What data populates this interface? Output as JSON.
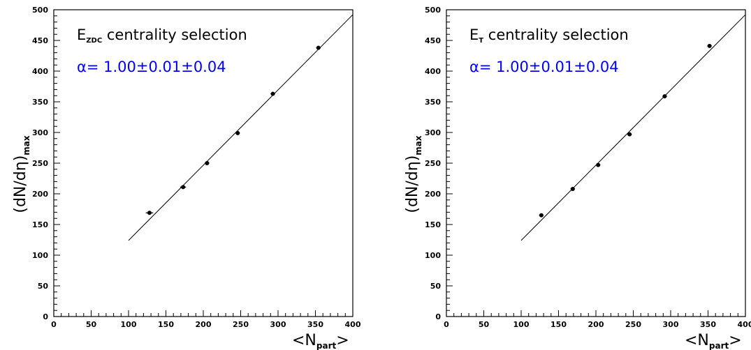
{
  "chart_data": [
    {
      "type": "scatter",
      "title": "",
      "xlabel": "<N_part>",
      "ylabel": "(dN/dη)_max",
      "xlim": [
        0,
        400
      ],
      "ylim": [
        0,
        500
      ],
      "x_ticks": [
        "0",
        "50",
        "100",
        "150",
        "200",
        "250",
        "300",
        "350",
        "400"
      ],
      "y_ticks": [
        "0",
        "50",
        "100",
        "150",
        "200",
        "250",
        "300",
        "350",
        "400",
        "450",
        "500"
      ],
      "grid": false,
      "annotation_line1": {
        "main": "E",
        "sub": "ZDC",
        "rest": " centrality selection"
      },
      "annotation_line2": "α= 1.00±0.01±0.04",
      "annotation_color": "#0000ee",
      "series": [
        {
          "x": [
            128,
            173,
            205,
            246,
            293,
            354
          ],
          "y": [
            169,
            211,
            250,
            299,
            363,
            438
          ],
          "xerr": [
            5,
            4,
            3,
            3,
            3,
            3
          ]
        }
      ],
      "fit_line": {
        "x": [
          100,
          400
        ],
        "y": [
          124,
          492
        ]
      }
    },
    {
      "type": "scatter",
      "title": "",
      "xlabel": "<N_part>",
      "ylabel": "(dN/dη)_max",
      "xlim": [
        0,
        400
      ],
      "ylim": [
        0,
        500
      ],
      "x_ticks": [
        "0",
        "50",
        "100",
        "150",
        "200",
        "250",
        "300",
        "350",
        "400"
      ],
      "y_ticks": [
        "0",
        "50",
        "100",
        "150",
        "200",
        "250",
        "300",
        "350",
        "400",
        "450",
        "500"
      ],
      "grid": false,
      "annotation_line1": {
        "main": "E",
        "sub": "T",
        "rest": " centrality selection"
      },
      "annotation_line2": "α= 1.00±0.01±0.04",
      "annotation_color": "#0000ee",
      "series": [
        {
          "x": [
            127,
            169,
            203,
            245,
            292,
            352
          ],
          "y": [
            165,
            208,
            247,
            297,
            359,
            441
          ],
          "xerr": [
            3,
            3,
            3,
            3,
            3,
            3
          ]
        }
      ],
      "fit_line": {
        "x": [
          100,
          400
        ],
        "y": [
          124,
          492
        ]
      }
    }
  ]
}
